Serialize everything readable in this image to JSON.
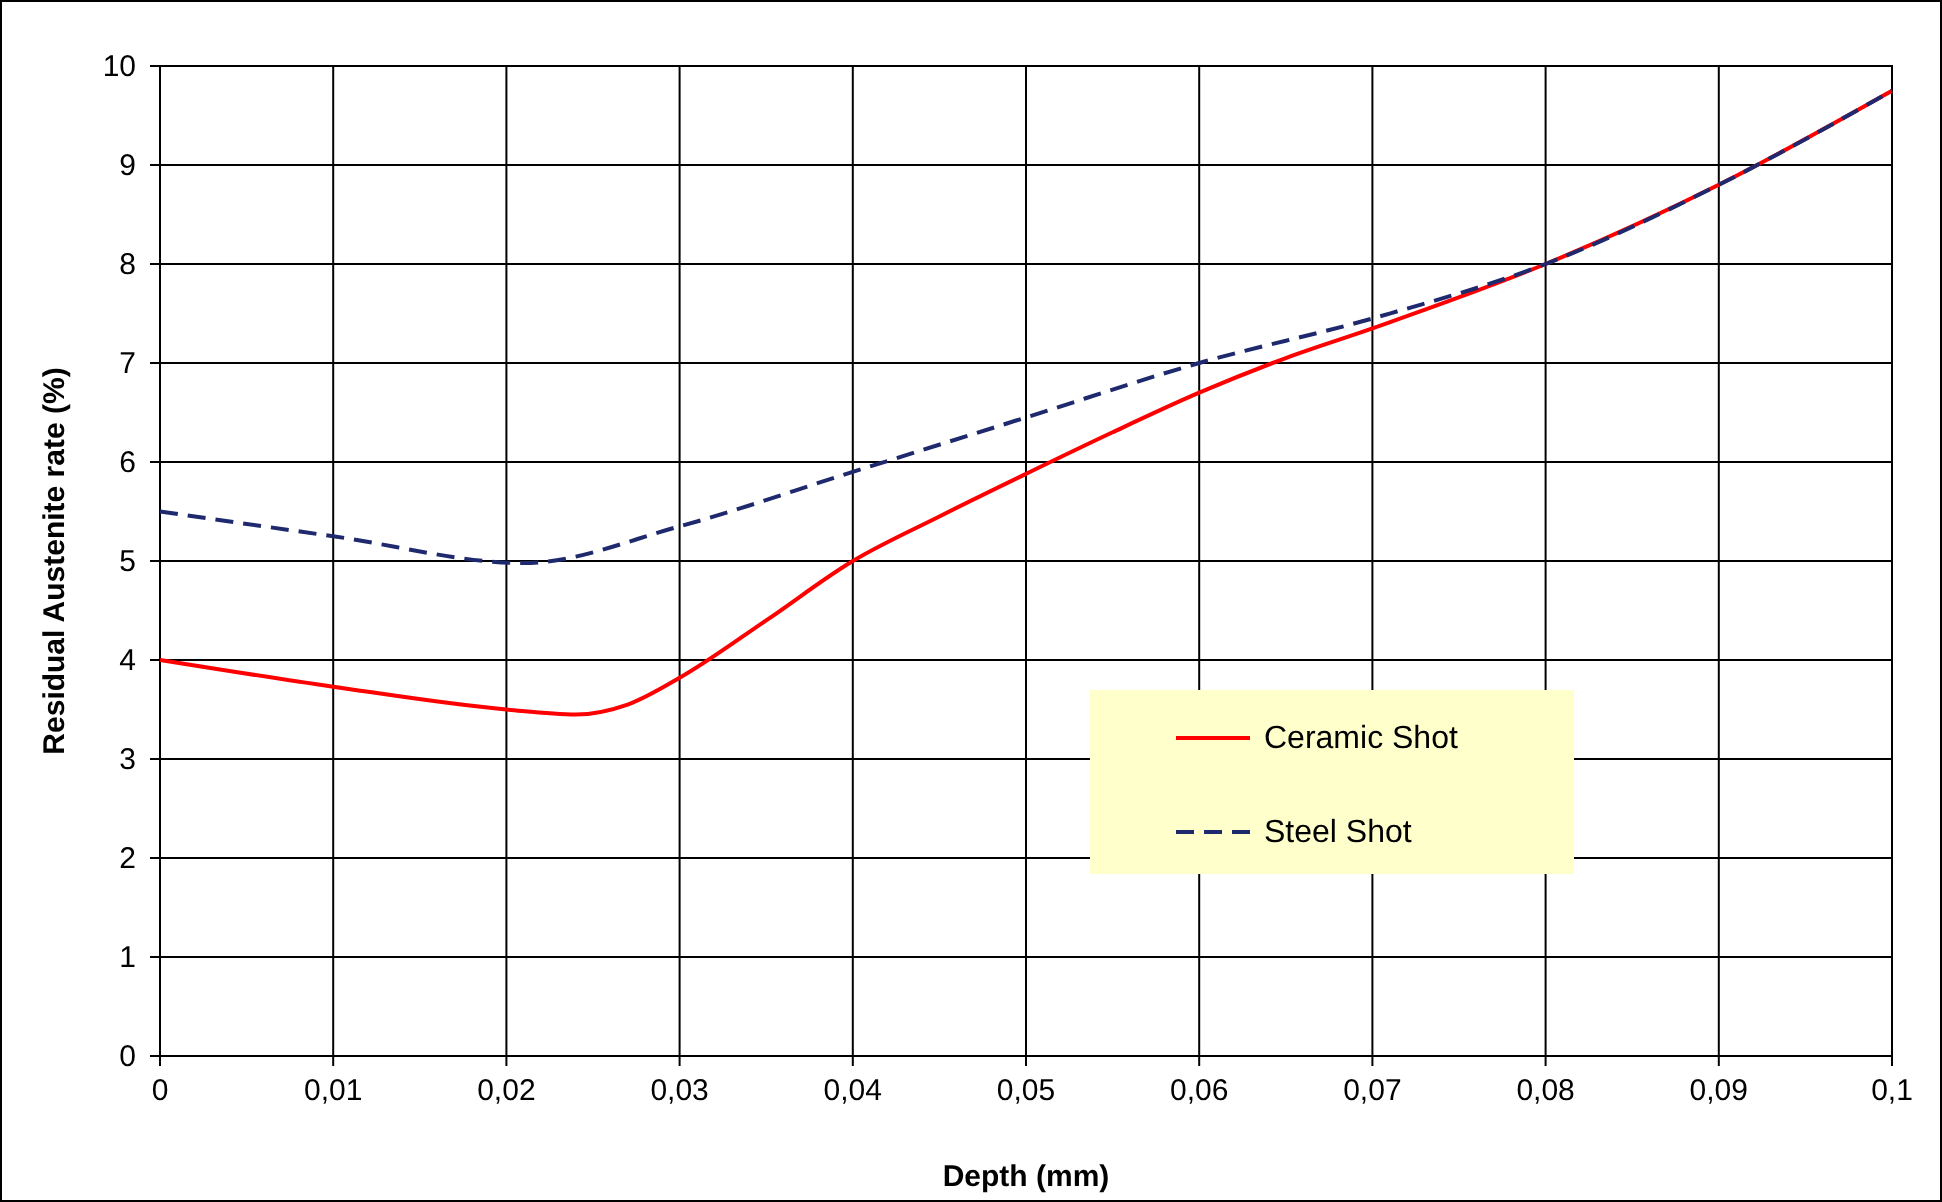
{
  "chart_data": {
    "type": "line",
    "xlabel": "Depth (mm)",
    "ylabel": "Residual Austenite rate (%)",
    "xlim": [
      0,
      0.1
    ],
    "ylim": [
      0,
      10
    ],
    "xticks": [
      0,
      {
        "value": 0.01,
        "label": "0,01"
      },
      {
        "value": 0.02,
        "label": "0,02"
      },
      {
        "value": 0.03,
        "label": "0,03"
      },
      {
        "value": 0.04,
        "label": "0,04"
      },
      {
        "value": 0.05,
        "label": "0,05"
      },
      {
        "value": 0.06,
        "label": "0,06"
      },
      {
        "value": 0.07,
        "label": "0,07"
      },
      {
        "value": 0.08,
        "label": "0,08"
      },
      {
        "value": 0.09,
        "label": "0,09"
      },
      {
        "value": 0.1,
        "label": "0,1"
      }
    ],
    "yticks": [
      0,
      1,
      2,
      3,
      4,
      5,
      6,
      7,
      8,
      9,
      10
    ],
    "grid": true,
    "legend": "bottom right",
    "marker": "none",
    "series": [
      {
        "name": "Ceramic Shot",
        "color": "#ff0000",
        "line_style": "solid",
        "x": [
          0,
          0.01,
          0.02,
          0.024,
          0.027,
          0.03,
          0.035,
          0.04,
          0.045,
          0.05,
          0.055,
          0.06,
          0.065,
          0.07,
          0.08,
          0.09,
          0.1
        ],
        "values": [
          4,
          3.73,
          3.5,
          3.45,
          3.55,
          3.82,
          4.4,
          5,
          5.45,
          5.88,
          6.3,
          6.7,
          7.05,
          7.35,
          8,
          8.8,
          9.75
        ]
      },
      {
        "name": "Steel Shot",
        "color": "#1f2a6e",
        "line_style": "dashed",
        "x": [
          0,
          0.01,
          0.021,
          0.03,
          0.04,
          0.05,
          0.06,
          0.07,
          0.08,
          0.09,
          0.1
        ],
        "values": [
          5.5,
          5.25,
          4.98,
          5.35,
          5.9,
          6.45,
          7,
          7.45,
          8,
          8.8,
          9.75
        ]
      }
    ]
  }
}
